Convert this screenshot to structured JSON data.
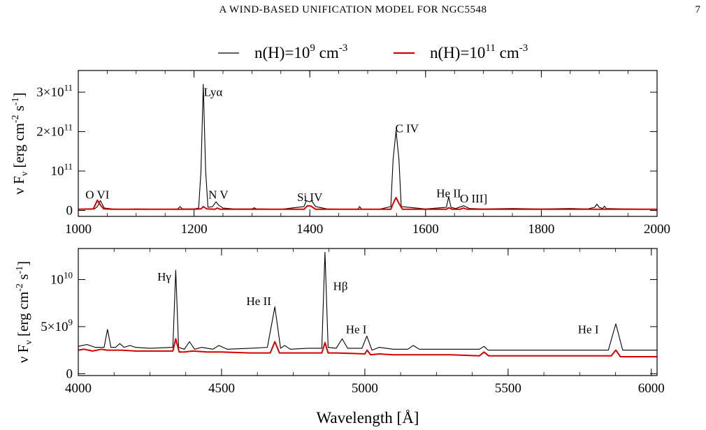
{
  "header": {
    "running_head": "A WIND-BASED UNIFICATION MODEL FOR NGC5548",
    "page_number": "7"
  },
  "colors": {
    "low_density": "#000000",
    "high_density": "#d40000"
  },
  "legend": {
    "placement": "top-center",
    "entries": [
      {
        "base": "n(H)=10",
        "exp": "9",
        "unit_base": " cm",
        "unit_exp": "-3",
        "color": "#000000"
      },
      {
        "base": "n(H)=10",
        "exp": "11",
        "unit_base": " cm",
        "unit_exp": "-3",
        "color": "#d40000"
      }
    ]
  },
  "chart_data": [
    {
      "type": "line",
      "xlim": [
        1000,
        2000
      ],
      "ylim": [
        -15000000000.0,
        355000000000.0
      ],
      "xticks": [
        1000,
        1200,
        1400,
        1600,
        1800,
        2000
      ],
      "yticks": [
        {
          "value": 0,
          "base": "0",
          "exp": ""
        },
        {
          "value": 100000000000.0,
          "base": "10",
          "exp": "11"
        },
        {
          "value": 200000000000.0,
          "base": "2×10",
          "exp": "11"
        },
        {
          "value": 300000000000.0,
          "base": "3×10",
          "exp": "11"
        }
      ],
      "ylabel": {
        "p1": "ν F",
        "sub": "ν",
        "p2": " [erg cm",
        "e1": "-2",
        "p3": " s",
        "e2": "-1",
        "p4": "]"
      },
      "xlabel": "",
      "annotations": [
        {
          "text": "O VI",
          "x": 1033,
          "y": 30000000000.0
        },
        {
          "text": "Lyα",
          "x": 1233,
          "y": 290000000000.0
        },
        {
          "text": "N V",
          "x": 1242,
          "y": 30000000000.0
        },
        {
          "text": "Si IV",
          "x": 1400,
          "y": 24000000000.0
        },
        {
          "text": "C IV",
          "x": 1568,
          "y": 198000000000.0
        },
        {
          "text": "He II",
          "x": 1640,
          "y": 34000000000.0
        },
        {
          "text": "O III]",
          "x": 1683,
          "y": 20000000000.0
        }
      ],
      "series": [
        {
          "name": "n(H)=10^9 cm^-3",
          "color": "#000000",
          "x": [
            1000,
            1020,
            1028,
            1033,
            1038,
            1045,
            1060,
            1080,
            1100,
            1150,
            1172,
            1176,
            1180,
            1200,
            1208,
            1212,
            1216,
            1220,
            1224,
            1232,
            1238,
            1242,
            1250,
            1270,
            1300,
            1304,
            1308,
            1320,
            1350,
            1390,
            1394,
            1400,
            1403,
            1410,
            1430,
            1460,
            1483,
            1486,
            1490,
            1520,
            1540,
            1544,
            1549,
            1554,
            1558,
            1600,
            1636,
            1640,
            1644,
            1652,
            1666,
            1676,
            1700,
            1750,
            1800,
            1850,
            1880,
            1892,
            1896,
            1900,
            1906,
            1909,
            1912,
            1950,
            2000
          ],
          "y": [
            3000000000.0,
            3000000000.0,
            4000000000.0,
            10000000000.0,
            25000000000.0,
            6000000000.0,
            4000000000.0,
            3000000000.0,
            4000000000.0,
            3000000000.0,
            4000000000.0,
            10000000000.0,
            4000000000.0,
            4000000000.0,
            6000000000.0,
            100000000000.0,
            320000000000.0,
            100000000000.0,
            8000000000.0,
            10000000000.0,
            22000000000.0,
            14000000000.0,
            6000000000.0,
            4000000000.0,
            4000000000.0,
            7000000000.0,
            4000000000.0,
            4000000000.0,
            3000000000.0,
            10000000000.0,
            25000000000.0,
            22000000000.0,
            25000000000.0,
            10000000000.0,
            4000000000.0,
            3000000000.0,
            3000000000.0,
            10000000000.0,
            3000000000.0,
            3000000000.0,
            10000000000.0,
            130000000000.0,
            202000000000.0,
            130000000000.0,
            10000000000.0,
            4000000000.0,
            8000000000.0,
            35000000000.0,
            8000000000.0,
            5000000000.0,
            12000000000.0,
            5000000000.0,
            4000000000.0,
            5000000000.0,
            4000000000.0,
            5000000000.0,
            4000000000.0,
            8000000000.0,
            16000000000.0,
            8000000000.0,
            5000000000.0,
            11000000000.0,
            5000000000.0,
            4000000000.0,
            3000000000.0
          ]
        },
        {
          "name": "n(H)=10^11 cm^-3",
          "color": "#d40000",
          "x": [
            1000,
            1026,
            1033,
            1038,
            1044,
            1060,
            1200,
            1212,
            1216,
            1222,
            1236,
            1240,
            1245,
            1300,
            1390,
            1396,
            1402,
            1410,
            1540,
            1544,
            1549,
            1554,
            1560,
            1636,
            1640,
            1646,
            1660,
            1665,
            1672,
            1700,
            2000
          ],
          "y": [
            3000000000.0,
            4000000000.0,
            26000000000.0,
            14000000000.0,
            4000000000.0,
            3000000000.0,
            3000000000.0,
            4000000000.0,
            10000000000.0,
            4000000000.0,
            3000000000.0,
            6000000000.0,
            3000000000.0,
            3000000000.0,
            3000000000.0,
            12000000000.0,
            11000000000.0,
            3000000000.0,
            3000000000.0,
            18000000000.0,
            33000000000.0,
            18000000000.0,
            3000000000.0,
            3000000000.0,
            7000000000.0,
            3000000000.0,
            3000000000.0,
            6000000000.0,
            3000000000.0,
            3000000000.0,
            3000000000.0
          ]
        }
      ]
    },
    {
      "type": "line",
      "xlim": [
        4000,
        6020
      ],
      "ylim": [
        -200000000.0,
        13300000000.0
      ],
      "xticks": [
        4000,
        4500,
        5000,
        5500,
        6000
      ],
      "yticks": [
        {
          "value": 0,
          "base": "0",
          "exp": ""
        },
        {
          "value": 5000000000.0,
          "base": "5×10",
          "exp": "9"
        },
        {
          "value": 10000000000.0,
          "base": "10",
          "exp": "10"
        }
      ],
      "ylabel": {
        "p1": "ν F",
        "sub": "ν",
        "p2": " [erg cm",
        "e1": "-2",
        "p3": " s",
        "e2": "-1",
        "p4": "]"
      },
      "xlabel": "Wavelength [Å]",
      "annotations": [
        {
          "text": "Hγ",
          "x": 4300,
          "y": 9900000000.0
        },
        {
          "text": "He II",
          "x": 4630,
          "y": 7300000000.0
        },
        {
          "text": "Hβ",
          "x": 4915,
          "y": 8900000000.0
        },
        {
          "text": "He I",
          "x": 4970,
          "y": 4300000000.0
        },
        {
          "text": "He I",
          "x": 5780,
          "y": 4300000000.0
        }
      ],
      "series": [
        {
          "name": "n(H)=10^9 cm^-3",
          "color": "#000000",
          "x": [
            4000,
            4030,
            4060,
            4090,
            4102,
            4114,
            4130,
            4145,
            4160,
            4180,
            4200,
            4250,
            4330,
            4340,
            4350,
            4370,
            4388,
            4406,
            4430,
            4470,
            4490,
            4520,
            4600,
            4660,
            4686,
            4706,
            4720,
            4740,
            4800,
            4850,
            4861,
            4872,
            4900,
            4921,
            4940,
            4990,
            5007,
            5025,
            5050,
            5100,
            5150,
            5169,
            5190,
            5250,
            5300,
            5400,
            5416,
            5430,
            5500,
            5600,
            5700,
            5850,
            5876,
            5900,
            5950,
            6000,
            6020
          ],
          "y": [
            2900000000.0,
            3100000000.0,
            2800000000.0,
            2800000000.0,
            4700000000.0,
            2800000000.0,
            2800000000.0,
            3200000000.0,
            2800000000.0,
            3000000000.0,
            2800000000.0,
            2700000000.0,
            2800000000.0,
            11000000000.0,
            2800000000.0,
            2600000000.0,
            3400000000.0,
            2600000000.0,
            2800000000.0,
            2600000000.0,
            3000000000.0,
            2600000000.0,
            2700000000.0,
            2800000000.0,
            7100000000.0,
            2700000000.0,
            3000000000.0,
            2600000000.0,
            2700000000.0,
            2700000000.0,
            12900000000.0,
            2800000000.0,
            2700000000.0,
            3700000000.0,
            2700000000.0,
            2700000000.0,
            4000000000.0,
            2500000000.0,
            2800000000.0,
            2600000000.0,
            2600000000.0,
            3000000000.0,
            2600000000.0,
            2600000000.0,
            2600000000.0,
            2600000000.0,
            2900000000.0,
            2500000000.0,
            2500000000.0,
            2500000000.0,
            2500000000.0,
            2500000000.0,
            5300000000.0,
            2500000000.0,
            2500000000.0,
            2500000000.0,
            2500000000.0
          ]
        },
        {
          "name": "n(H)=10^11 cm^-3",
          "color": "#d40000",
          "x": [
            4000,
            4020,
            4050,
            4080,
            4100,
            4150,
            4200,
            4250,
            4330,
            4340,
            4352,
            4370,
            4400,
            4450,
            4500,
            4600,
            4670,
            4686,
            4702,
            4720,
            4800,
            4850,
            4861,
            4872,
            4900,
            5000,
            5008,
            5020,
            5050,
            5100,
            5200,
            5300,
            5400,
            5416,
            5432,
            5500,
            5700,
            5860,
            5876,
            5892,
            5950,
            6020
          ],
          "y": [
            2500000000.0,
            2600000000.0,
            2400000000.0,
            2600000000.0,
            2500000000.0,
            2500000000.0,
            2400000000.0,
            2400000000.0,
            2400000000.0,
            3700000000.0,
            2300000000.0,
            2300000000.0,
            2400000000.0,
            2300000000.0,
            2300000000.0,
            2200000000.0,
            2200000000.0,
            3400000000.0,
            2200000000.0,
            2200000000.0,
            2200000000.0,
            2200000000.0,
            3300000000.0,
            2200000000.0,
            2200000000.0,
            2100000000.0,
            2500000000.0,
            2000000000.0,
            2100000000.0,
            2000000000.0,
            2000000000.0,
            2000000000.0,
            1900000000.0,
            2300000000.0,
            1900000000.0,
            1900000000.0,
            1900000000.0,
            1900000000.0,
            2500000000.0,
            1800000000.0,
            1800000000.0,
            1800000000.0
          ]
        }
      ]
    }
  ]
}
